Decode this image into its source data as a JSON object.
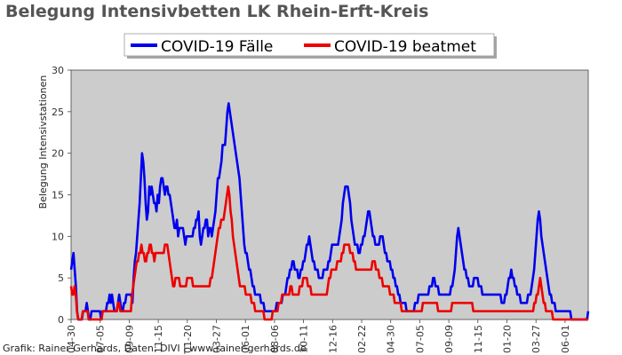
{
  "chart_data": {
    "type": "line",
    "title": "Belegung Intensivbetten LK Rhein-Erft-Kreis",
    "ylabel": "Belegung Intensivstationen",
    "ylim": [
      0,
      30
    ],
    "yticks": [
      0,
      5,
      10,
      15,
      20,
      25,
      30
    ],
    "xlabel": "",
    "xticks": [
      "04-30",
      "07-05",
      "09-09",
      "11-15",
      "01-20",
      "03-27",
      "06-01",
      "08-06",
      "10-11",
      "12-16",
      "02-22",
      "04-30",
      "07-05",
      "09-09",
      "11-15",
      "01-20",
      "03-27",
      "06-01"
    ],
    "grid": false,
    "legend_position": "top-center",
    "background": "#cccccc",
    "footer": "Grafik: Rainer Gerhards, Daten: DIVI | www.rainer-gerhards.de",
    "series": [
      {
        "name": "COVID-19 Fälle",
        "color": "#0000ee",
        "values": [
          6,
          7,
          8,
          6,
          4,
          1,
          0,
          0,
          0,
          0,
          1,
          1,
          1,
          2,
          1,
          0,
          0,
          1,
          1,
          1,
          1,
          1,
          1,
          1,
          1,
          0,
          1,
          1,
          1,
          1,
          2,
          2,
          3,
          2,
          3,
          2,
          1,
          1,
          1,
          2,
          3,
          2,
          1,
          1,
          2,
          2,
          3,
          3,
          3,
          3,
          3,
          2,
          5,
          7,
          8,
          10,
          12,
          14,
          17,
          20,
          19,
          17,
          14,
          12,
          13,
          16,
          15,
          16,
          15,
          14,
          14,
          13,
          15,
          14,
          16,
          17,
          17,
          16,
          15,
          16,
          16,
          15,
          15,
          14,
          13,
          12,
          11,
          11,
          12,
          10,
          11,
          11,
          11,
          11,
          10,
          9,
          10,
          10,
          10,
          10,
          10,
          10,
          11,
          11,
          12,
          12,
          13,
          10,
          9,
          10,
          11,
          11,
          12,
          12,
          10,
          11,
          11,
          10,
          11,
          12,
          13,
          15,
          17,
          17,
          18,
          19,
          21,
          21,
          21,
          23,
          25,
          26,
          25,
          24,
          23,
          22,
          21,
          20,
          19,
          18,
          17,
          15,
          13,
          11,
          9,
          8,
          8,
          7,
          6,
          6,
          5,
          4,
          4,
          3,
          3,
          3,
          3,
          3,
          2,
          2,
          2,
          1,
          1,
          1,
          1,
          1,
          1,
          1,
          1,
          1,
          1,
          2,
          2,
          2,
          2,
          2,
          3,
          3,
          3,
          4,
          5,
          5,
          6,
          6,
          7,
          7,
          6,
          6,
          6,
          5,
          5,
          6,
          6,
          7,
          7,
          8,
          9,
          9,
          10,
          9,
          8,
          7,
          7,
          6,
          6,
          6,
          5,
          5,
          5,
          5,
          6,
          6,
          6,
          6,
          7,
          7,
          8,
          9,
          9,
          9,
          9,
          9,
          9,
          10,
          11,
          12,
          14,
          15,
          16,
          16,
          16,
          15,
          14,
          12,
          11,
          10,
          9,
          9,
          9,
          8,
          8,
          9,
          9,
          10,
          10,
          11,
          12,
          13,
          13,
          12,
          11,
          10,
          10,
          9,
          9,
          9,
          9,
          10,
          10,
          10,
          9,
          8,
          8,
          7,
          7,
          7,
          6,
          6,
          5,
          5,
          4,
          4,
          3,
          3,
          2,
          2,
          2,
          2,
          2,
          1,
          1,
          1,
          1,
          1,
          1,
          1,
          2,
          2,
          2,
          3,
          3,
          3,
          3,
          3,
          3,
          3,
          3,
          3,
          4,
          4,
          4,
          5,
          5,
          4,
          4,
          4,
          3,
          3,
          3,
          3,
          3,
          3,
          3,
          3,
          3,
          3,
          4,
          4,
          5,
          6,
          8,
          10,
          11,
          10,
          9,
          8,
          7,
          6,
          6,
          5,
          5,
          4,
          4,
          4,
          4,
          5,
          5,
          5,
          5,
          4,
          4,
          4,
          3,
          3,
          3,
          3,
          3,
          3,
          3,
          3,
          3,
          3,
          3,
          3,
          3,
          3,
          3,
          3,
          2,
          2,
          2,
          3,
          3,
          4,
          5,
          5,
          6,
          5,
          5,
          4,
          4,
          3,
          3,
          3,
          2,
          2,
          2,
          2,
          2,
          2,
          3,
          3,
          3,
          4,
          5,
          6,
          8,
          10,
          12,
          13,
          12,
          10,
          9,
          8,
          7,
          6,
          5,
          4,
          3,
          3,
          2,
          2,
          2,
          1,
          1,
          1,
          1,
          1,
          1,
          1,
          1,
          1,
          1,
          1,
          1,
          1,
          0,
          0,
          0,
          0,
          0,
          0,
          0,
          0,
          0,
          0,
          0,
          0,
          0,
          0,
          1
        ]
      },
      {
        "name": "COVID-19 beatmet",
        "color": "#ee0000",
        "values": [
          4,
          3,
          3,
          4,
          3,
          1,
          0,
          0,
          0,
          0,
          1,
          1,
          1,
          1,
          1,
          0,
          0,
          0,
          0,
          0,
          0,
          0,
          0,
          0,
          0,
          0,
          0,
          1,
          1,
          1,
          1,
          1,
          1,
          1,
          1,
          1,
          1,
          1,
          1,
          1,
          2,
          2,
          1,
          1,
          1,
          1,
          1,
          1,
          1,
          1,
          1,
          1,
          3,
          4,
          5,
          6,
          7,
          7,
          8,
          8,
          9,
          8,
          8,
          7,
          7,
          8,
          8,
          9,
          9,
          8,
          8,
          7,
          8,
          8,
          8,
          8,
          8,
          8,
          8,
          8,
          9,
          9,
          9,
          8,
          7,
          6,
          5,
          4,
          4,
          5,
          5,
          5,
          5,
          4,
          4,
          4,
          4,
          4,
          4,
          5,
          5,
          5,
          5,
          5,
          4,
          4,
          4,
          4,
          4,
          4,
          4,
          4,
          4,
          4,
          4,
          4,
          4,
          4,
          4,
          5,
          5,
          6,
          7,
          8,
          9,
          10,
          11,
          11,
          12,
          12,
          12,
          13,
          14,
          15,
          16,
          15,
          13,
          12,
          10,
          9,
          8,
          7,
          6,
          5,
          4,
          4,
          4,
          4,
          4,
          3,
          3,
          3,
          3,
          3,
          2,
          2,
          2,
          1,
          1,
          1,
          1,
          1,
          1,
          1,
          1,
          0,
          0,
          0,
          0,
          0,
          0,
          0,
          1,
          1,
          1,
          1,
          1,
          2,
          2,
          2,
          3,
          3,
          3,
          3,
          3,
          3,
          3,
          4,
          4,
          3,
          3,
          3,
          3,
          3,
          3,
          4,
          4,
          4,
          5,
          5,
          5,
          5,
          4,
          4,
          4,
          3,
          3,
          3,
          3,
          3,
          3,
          3,
          3,
          3,
          3,
          3,
          3,
          3,
          3,
          4,
          5,
          5,
          6,
          6,
          6,
          6,
          6,
          7,
          7,
          7,
          7,
          8,
          8,
          9,
          9,
          9,
          9,
          9,
          8,
          8,
          8,
          7,
          7,
          6,
          6,
          6,
          6,
          6,
          6,
          6,
          6,
          6,
          6,
          6,
          6,
          6,
          6,
          7,
          7,
          7,
          6,
          6,
          6,
          5,
          5,
          5,
          4,
          4,
          4,
          4,
          4,
          4,
          3,
          3,
          3,
          3,
          2,
          2,
          2,
          2,
          2,
          2,
          1,
          1,
          1,
          1,
          1,
          1,
          1,
          1,
          1,
          1,
          1,
          1,
          1,
          1,
          1,
          1,
          1,
          1,
          2,
          2,
          2,
          2,
          2,
          2,
          2,
          2,
          2,
          2,
          2,
          2,
          2,
          1,
          1,
          1,
          1,
          1,
          1,
          1,
          1,
          1,
          1,
          1,
          1,
          2,
          2,
          2,
          2,
          2,
          2,
          2,
          2,
          2,
          2,
          2,
          2,
          2,
          2,
          2,
          2,
          2,
          2,
          1,
          1,
          1,
          1,
          1,
          1,
          1,
          1,
          1,
          1,
          1,
          1,
          1,
          1,
          1,
          1,
          1,
          1,
          1,
          1,
          1,
          1,
          1,
          1,
          1,
          1,
          1,
          1,
          1,
          1,
          1,
          1,
          1,
          1,
          1,
          1,
          1,
          1,
          1,
          1,
          1,
          1,
          1,
          1,
          1,
          1,
          1,
          1,
          1,
          1,
          1,
          1,
          2,
          2,
          3,
          3,
          4,
          5,
          4,
          3,
          2,
          2,
          1,
          1,
          1,
          1,
          1,
          1,
          0,
          0,
          0,
          0,
          0,
          0,
          0,
          0,
          0,
          0,
          0,
          0,
          0,
          0,
          0,
          0,
          0,
          0,
          0,
          0,
          0,
          0,
          0,
          0,
          0,
          0,
          0,
          0,
          0,
          0,
          0
        ]
      }
    ]
  }
}
